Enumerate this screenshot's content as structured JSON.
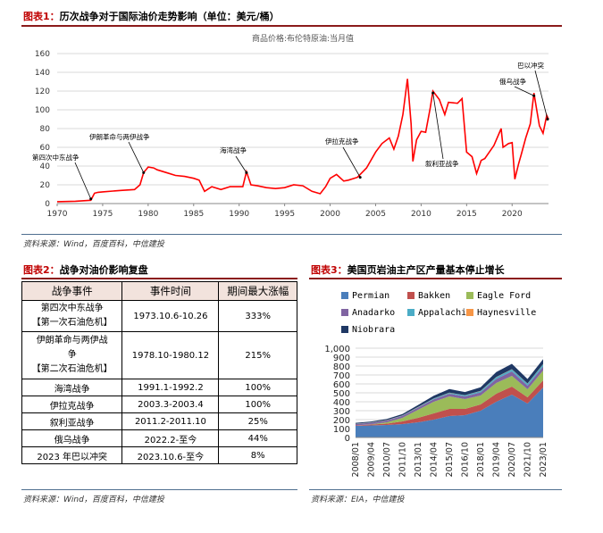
{
  "figure1": {
    "label": "图表1：",
    "title": "历次战争对于国际油价走势影响（单位：美元/桶）",
    "chart_title": "商品价格:布伦特原油:当月值",
    "source": "资料来源：Wind，百度百科，中信建投"
  },
  "chart_data": [
    {
      "type": "line",
      "title": "商品价格:布伦特原油:当月值",
      "xlim": [
        1970,
        2024
      ],
      "ylim": [
        0,
        160
      ],
      "x_ticks": [
        1970,
        1975,
        1980,
        1985,
        1990,
        1995,
        2000,
        2005,
        2010,
        2015,
        2020
      ],
      "y_ticks": [
        0,
        20,
        40,
        60,
        80,
        100,
        120,
        140,
        160
      ],
      "grid": true,
      "line_color": "#ff0000",
      "series": [
        {
          "x": [
            1970,
            1972,
            1973.7,
            1974.1,
            1974.5,
            1975,
            1977,
            1978.5,
            1979.1,
            1979.5,
            1980,
            1980.6,
            1981,
            1982,
            1983,
            1984,
            1985,
            1985.6,
            1986.2,
            1986.5,
            1987,
            1988,
            1989,
            1990.4,
            1990.8,
            1991.3,
            1992,
            1993,
            1994,
            1995,
            1996,
            1997,
            1998,
            1998.9,
            1999.5,
            2000,
            2000.7,
            2001.5,
            2002,
            2003,
            2004,
            2005,
            2005.7,
            2006.5,
            2007,
            2007.5,
            2008.0,
            2008.5,
            2008.9,
            2009.1,
            2009.5,
            2010,
            2010.5,
            2011,
            2011.3,
            2012,
            2012.6,
            2013,
            2014,
            2014.5,
            2015,
            2015.6,
            2016.1,
            2016.6,
            2017,
            2018,
            2018.8,
            2019,
            2019.6,
            2020.0,
            2020.3,
            2020.7,
            2021,
            2021.5,
            2022.0,
            2022.4,
            2022.7,
            2023.0,
            2023.4,
            2023.8,
            2024.0
          ],
          "y": [
            2,
            2.5,
            3.5,
            11,
            12,
            12.5,
            14,
            15,
            20,
            33,
            39,
            38,
            36,
            33,
            30,
            29,
            27,
            25,
            13,
            15,
            18,
            15,
            18,
            18,
            34,
            20,
            19,
            17,
            16,
            17,
            20,
            19,
            13,
            10.5,
            18,
            27,
            31,
            24,
            25,
            28,
            38,
            55,
            64,
            70,
            58,
            72,
            95,
            133,
            85,
            45,
            68,
            77,
            76,
            102,
            120,
            111,
            95,
            108,
            107,
            112,
            55,
            50,
            32,
            46,
            48,
            62,
            80,
            60,
            64,
            65,
            26,
            42,
            52,
            70,
            85,
            118,
            100,
            83,
            75,
            94,
            90
          ]
        }
      ],
      "annotations": [
        "第四次中东战争",
        "伊朗革命与两伊战争",
        "海湾战争",
        "伊拉克战争",
        "叙利亚战争",
        "俄乌战争",
        "巴以冲突"
      ]
    },
    {
      "type": "area",
      "title": "美国页岩油主产区产量基本停止增长",
      "x_labels": [
        "2008/01",
        "2009/04",
        "2010/07",
        "2011/10",
        "2013/01",
        "2014/04",
        "2015/07",
        "2016/10",
        "2018/01",
        "2019/04",
        "2020/07",
        "2021/10",
        "2023/01"
      ],
      "ylim": [
        0,
        1000
      ],
      "y_ticks": [
        0,
        100,
        200,
        300,
        400,
        500,
        600,
        700,
        800,
        900,
        "1,000"
      ],
      "grid": true,
      "legend_placement": "top-left",
      "series": [
        {
          "name": "Permian",
          "color": "#4a7ebb",
          "values": [
            130,
            135,
            140,
            150,
            170,
            200,
            240,
            250,
            300,
            400,
            480,
            380,
            560
          ]
        },
        {
          "name": "Bakken",
          "color": "#c0504d",
          "values": [
            5,
            10,
            15,
            30,
            50,
            70,
            80,
            70,
            70,
            90,
            90,
            70,
            80
          ]
        },
        {
          "name": "Eagle Ford",
          "color": "#9bbb59",
          "values": [
            0,
            2,
            15,
            40,
            90,
            130,
            140,
            110,
            100,
            120,
            120,
            90,
            110
          ]
        },
        {
          "name": "Anadarko",
          "color": "#8064a2",
          "values": [
            15,
            18,
            20,
            22,
            25,
            28,
            30,
            30,
            35,
            45,
            50,
            40,
            45
          ]
        },
        {
          "name": "Appalachia",
          "color": "#4bacc6",
          "values": [
            3,
            3,
            3,
            4,
            5,
            8,
            10,
            12,
            15,
            20,
            22,
            22,
            25
          ]
        },
        {
          "name": "Haynesville",
          "color": "#f79646",
          "values": [
            1,
            1,
            2,
            2,
            2,
            2,
            2,
            2,
            2,
            3,
            3,
            3,
            3
          ]
        },
        {
          "name": "Niobrara",
          "color": "#1f3864",
          "values": [
            10,
            10,
            12,
            15,
            22,
            30,
            40,
            35,
            40,
            55,
            60,
            50,
            55
          ]
        }
      ]
    }
  ],
  "table": {
    "label": "图表2：",
    "title": "战争对油价影响复盘",
    "headers": [
      "战争事件",
      "事件时间",
      "期间最大涨幅"
    ],
    "rows": [
      {
        "event_l1": "第四次中东战争",
        "event_l2": "【第一次石油危机】",
        "time": "1973.10.6-10.26",
        "rise": "333%"
      },
      {
        "event_l1": "伊朗革命与两伊战",
        "event_l2": "争",
        "event_l3": "【第二次石油危机】",
        "time": "1978.10-1980.12",
        "rise": "215%"
      },
      {
        "event": "海湾战争",
        "time": "1991.1-1992.2",
        "rise": "100%"
      },
      {
        "event": "伊拉克战争",
        "time": "2003.3-2003.4",
        "rise": "100%"
      },
      {
        "event": "叙利亚战争",
        "time": "2011.2-2011.10",
        "rise": "25%"
      },
      {
        "event": "俄乌战争",
        "time": "2022.2-至今",
        "rise": "44%"
      },
      {
        "event": "2023 年巴以冲突",
        "time": "2023.10.6-至今",
        "rise": "8%"
      }
    ],
    "source": "资料来源：Wind，百度百科，中信建投"
  },
  "figure3": {
    "label": "图表3：",
    "title": "美国页岩油主产区产量基本停止增长",
    "source": "资料来源：EIA，中信建投"
  }
}
